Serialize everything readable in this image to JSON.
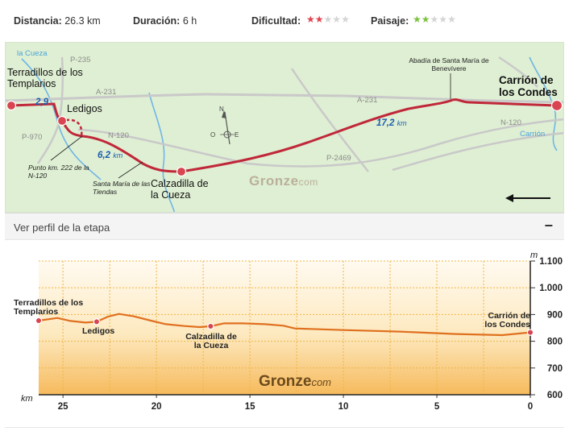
{
  "stats": {
    "distance_label": "Distancia:",
    "distance_value": "26.3 km",
    "duration_label": "Duración:",
    "duration_value": "6 h",
    "difficulty_label": "Dificultad:",
    "difficulty_rating": 2,
    "difficulty_max": 5,
    "landscape_label": "Paisaje:",
    "landscape_rating": 2,
    "landscape_max": 5,
    "color_difficulty": "#e0434f",
    "color_landscape": "#7cc142"
  },
  "map": {
    "rivers": [
      "la Cueza",
      "Carrión"
    ],
    "roads": [
      "P-235",
      "A-231",
      "A-231",
      "P-970",
      "N-120",
      "N-120",
      "P-2469"
    ],
    "towns": {
      "start": "Terradillos de los Templarios",
      "ledigos": "Ledigos",
      "calzadilla": "Calzadilla de la Cueza",
      "end": "Carrión de los Condes"
    },
    "notes": {
      "km_point": "Punto km. 222 de la N-120",
      "santa_maria": "Santa María de las Tiendas",
      "abbey": "Abadía de Santa María de Benevívere"
    },
    "distances": [
      {
        "value": "2,9",
        "unit": ""
      },
      {
        "value": "6,2",
        "unit": "km"
      },
      {
        "value": "17,2",
        "unit": "km"
      }
    ],
    "compass": {
      "n": "N",
      "o": "O",
      "e": "E"
    },
    "brand": "Gronze",
    "brand_suffix": "com",
    "route_color": "#c0283a"
  },
  "profile_header": {
    "title": "Ver perfil de la etapa",
    "collapse_symbol": "−"
  },
  "chart_data": {
    "type": "area",
    "x_label": "km",
    "y_label": "m",
    "x_ticks": [
      "25",
      "20",
      "15",
      "10",
      "5",
      "0"
    ],
    "y_ticks": [
      "1.100",
      "1.000",
      "900",
      "800",
      "700",
      "600"
    ],
    "xlim": [
      26.3,
      0
    ],
    "ylim": [
      600,
      1100
    ],
    "grid": true,
    "series": [
      {
        "x": [
          26.3,
          25.3,
          24.6,
          23.8,
          23.2,
          22.6,
          22.0,
          21.2,
          20.3,
          19.5,
          18.5,
          17.7,
          17.1,
          16.4,
          15.4,
          14.2,
          13.2,
          12.6,
          10.0,
          7.0,
          4.0,
          1.5,
          0
        ],
        "y": [
          877,
          887,
          876,
          870,
          873,
          892,
          902,
          893,
          877,
          864,
          857,
          853,
          856,
          867,
          867,
          864,
          858,
          848,
          842,
          836,
          827,
          823,
          833
        ]
      }
    ],
    "points": [
      {
        "name": "Terradillos de los Templarios",
        "km": 26.3,
        "elev": 877
      },
      {
        "name": "Ledigos",
        "km": 23.2,
        "elev": 873
      },
      {
        "name": "Calzadilla de la Cueza",
        "km": 17.1,
        "elev": 856
      },
      {
        "name": "Carrión de los Condes",
        "km": 0,
        "elev": 833
      }
    ],
    "brand": "Gronze",
    "brand_suffix": "com",
    "line_color": "#e0701f"
  }
}
